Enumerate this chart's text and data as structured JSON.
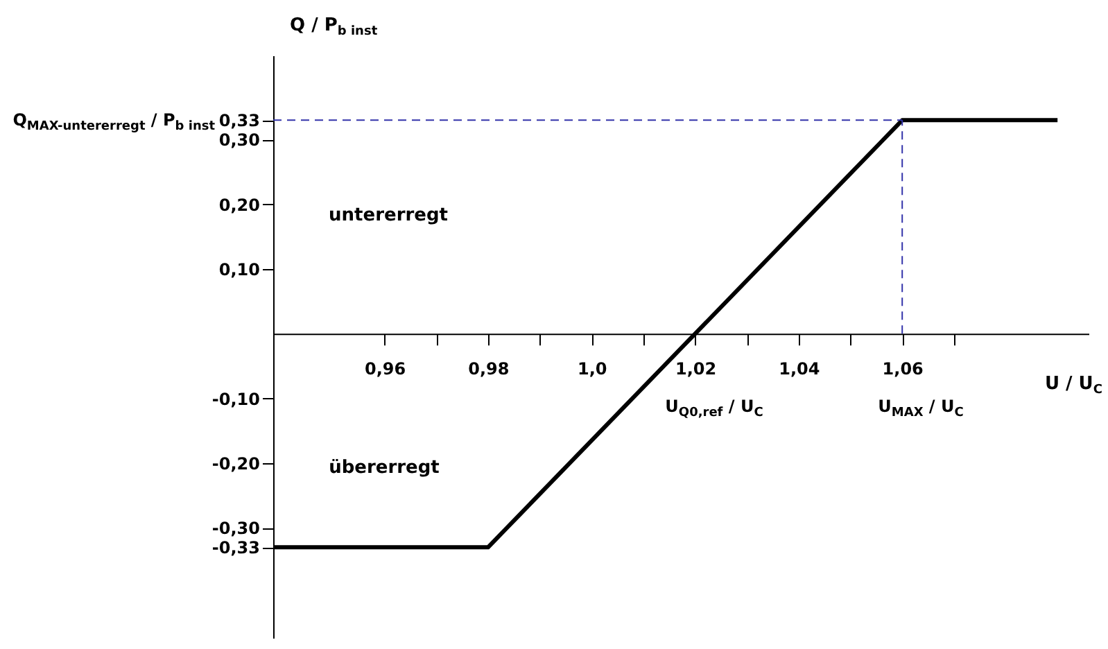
{
  "chart_data": {
    "type": "line",
    "xlabel": "U / U$_{C}$",
    "ylabel": "Q / P$_{b inst}$",
    "x": [
      0.9385,
      0.98,
      1.06,
      1.09
    ],
    "series": [
      {
        "color": "#000000",
        "values": [
          -0.33,
          -0.33,
          0.33,
          0.33
        ]
      }
    ],
    "xlim": [
      0.9385,
      1.096
    ],
    "ylim": [
      -0.47,
      0.43
    ],
    "xticks": [
      {
        "value": 0.96,
        "label": "0,96"
      },
      {
        "value": 0.97,
        "label": null
      },
      {
        "value": 0.98,
        "label": "0,98"
      },
      {
        "value": 0.99,
        "label": null
      },
      {
        "value": 1.0,
        "label": "1,0"
      },
      {
        "value": 1.01,
        "label": null
      },
      {
        "value": 1.02,
        "label": "1,02"
      },
      {
        "value": 1.03,
        "label": null
      },
      {
        "value": 1.04,
        "label": "1,04"
      },
      {
        "value": 1.05,
        "label": null
      },
      {
        "value": 1.06,
        "label": "1,06"
      },
      {
        "value": 1.07,
        "label": null
      }
    ],
    "yticks": [
      {
        "value": -0.33,
        "label": "-0,33"
      },
      {
        "value": -0.3,
        "label": "-0,30"
      },
      {
        "value": -0.2,
        "label": "-0,20"
      },
      {
        "value": -0.1,
        "label": "-0,10"
      },
      {
        "value": 0.1,
        "label": "0,10"
      },
      {
        "value": 0.2,
        "label": "0,20"
      },
      {
        "value": 0.3,
        "label": "0,30"
      },
      {
        "value": 0.33,
        "label": "0,33"
      }
    ],
    "ref_lines": [
      {
        "axis": "y",
        "value": 0.33,
        "color": "#3333aa",
        "line_style": "dashed"
      },
      {
        "axis": "x",
        "value": 1.06,
        "color": "#3333aa",
        "line_style": "dashed"
      }
    ],
    "annotations": [
      "untererregt",
      "übererregt",
      "U$_{Q0,ref}$ / U$_{C}$",
      "U$_{MAX}$ / U$_{C}$",
      "Q$_{MAX-untererregt}$ / P$_{b inst}$"
    ],
    "grid": false
  }
}
